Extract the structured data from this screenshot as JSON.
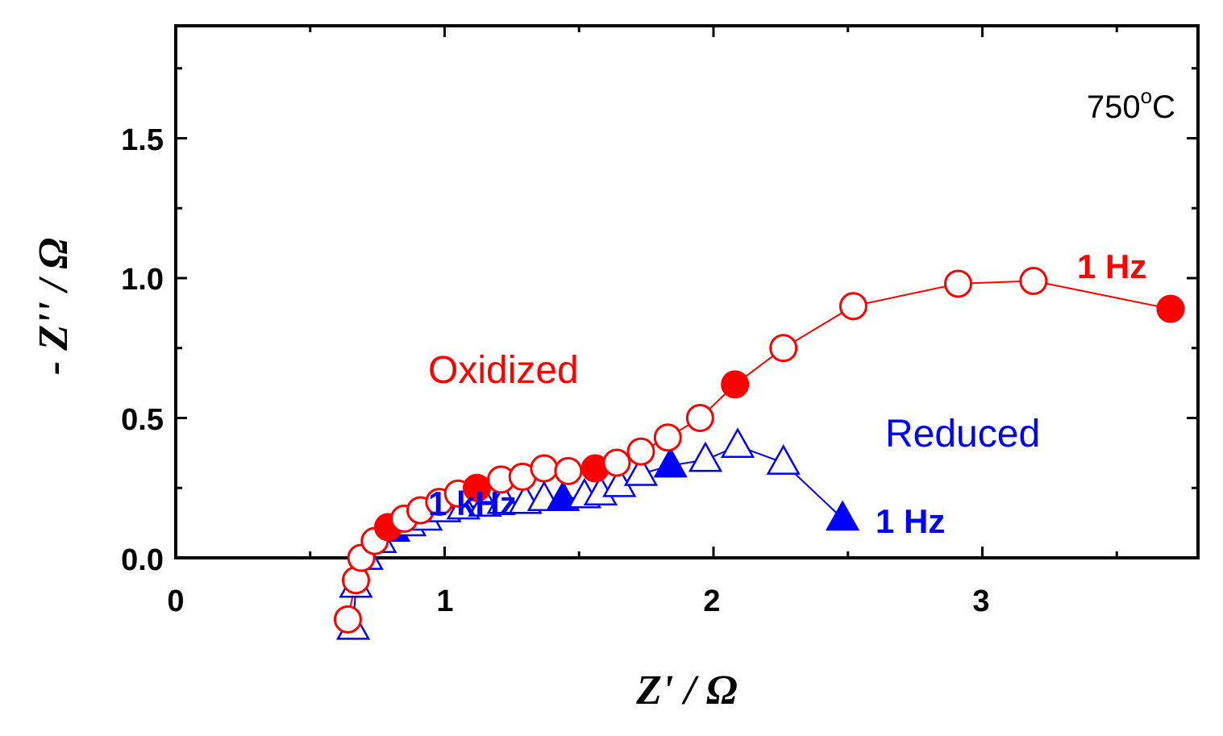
{
  "chart_data": {
    "type": "scatter",
    "xlabel": "Z' / Ω",
    "ylabel": "- Z'' / Ω",
    "xlim": [
      0,
      3.8
    ],
    "ylim": [
      0,
      1.9
    ],
    "xticks": [
      "0",
      "1",
      "2",
      "3"
    ],
    "xtick_values": [
      0,
      1,
      2,
      3
    ],
    "yticks": [
      "0.0",
      "0.5",
      "1.0",
      "1.5"
    ],
    "ytick_values": [
      0,
      0.5,
      1.0,
      1.5
    ],
    "grid": false,
    "series": [
      {
        "name": "Oxidized",
        "color": "#ff0000",
        "marker": "circle",
        "x": [
          0.64,
          0.67,
          0.69,
          0.74,
          0.79,
          0.85,
          0.91,
          0.98,
          1.05,
          1.12,
          1.21,
          1.29,
          1.37,
          1.46,
          1.56,
          1.64,
          1.73,
          1.83,
          1.95,
          2.08,
          2.26,
          2.52,
          2.91,
          3.19,
          3.7
        ],
        "y": [
          -0.22,
          -0.08,
          0.0,
          0.06,
          0.11,
          0.14,
          0.17,
          0.2,
          0.23,
          0.25,
          0.28,
          0.29,
          0.32,
          0.31,
          0.32,
          0.34,
          0.38,
          0.43,
          0.5,
          0.62,
          0.75,
          0.9,
          0.98,
          0.99,
          0.89
        ],
        "filled": [
          false,
          false,
          false,
          false,
          true,
          false,
          false,
          false,
          false,
          true,
          false,
          false,
          false,
          false,
          true,
          false,
          false,
          false,
          false,
          true,
          false,
          false,
          false,
          false,
          true
        ]
      },
      {
        "name": "Reduced",
        "color": "#0000ff",
        "marker": "triangle",
        "x": [
          0.66,
          0.67,
          0.71,
          0.76,
          0.81,
          0.87,
          0.93,
          1.0,
          1.07,
          1.15,
          1.22,
          1.3,
          1.37,
          1.44,
          1.52,
          1.58,
          1.65,
          1.73,
          1.84,
          1.97,
          2.09,
          2.26,
          2.48
        ],
        "y": [
          -0.25,
          -0.1,
          0.0,
          0.06,
          0.1,
          0.12,
          0.14,
          0.17,
          0.18,
          0.19,
          0.2,
          0.2,
          0.21,
          0.21,
          0.22,
          0.23,
          0.26,
          0.3,
          0.33,
          0.35,
          0.4,
          0.34,
          0.14
        ],
        "filled": [
          false,
          false,
          false,
          false,
          true,
          false,
          false,
          false,
          false,
          false,
          false,
          false,
          false,
          true,
          false,
          false,
          false,
          false,
          true,
          false,
          false,
          false,
          true
        ]
      }
    ],
    "annotations": {
      "temperature_value": "750",
      "temperature_degree": "o",
      "temperature_unit": "C",
      "oxidized_label": "Oxidized",
      "reduced_label": "Reduced",
      "oxidized_freq": "1 Hz",
      "reduced_freq": "1 Hz",
      "reduced_khz": "1 kHz"
    }
  }
}
